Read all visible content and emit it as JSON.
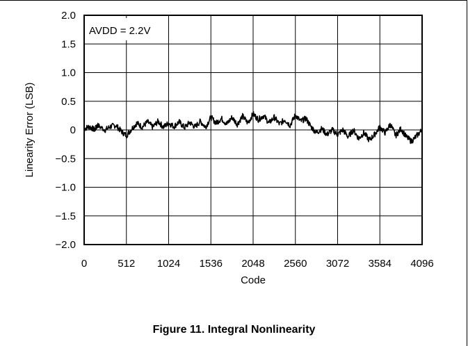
{
  "caption": "Figure 11. Integral Nonlinearity",
  "chart_data": {
    "type": "line",
    "title": "",
    "xlabel": "Code",
    "ylabel": "Linearity Error (LSB)",
    "xlim": [
      0,
      4096
    ],
    "ylim": [
      -2.0,
      2.0
    ],
    "x_ticks": [
      0,
      512,
      1024,
      1536,
      2048,
      2560,
      3072,
      3584,
      4096
    ],
    "y_ticks": [
      2.0,
      1.5,
      1.0,
      0.5,
      0,
      -0.5,
      -1.0,
      -1.5,
      -2.0
    ],
    "x_tick_labels": [
      "0",
      "512",
      "1024",
      "1536",
      "2048",
      "2560",
      "3072",
      "3584",
      "4096"
    ],
    "y_tick_labels": [
      "2.0",
      "1.5",
      "1.0",
      "0.5",
      "0",
      "−0.5",
      "−1.0",
      "−1.5",
      "−2.0"
    ],
    "grid": true,
    "annotation": "AVDD = 2.2V",
    "series": [
      {
        "color": "#000000",
        "x": [
          0,
          64,
          128,
          160,
          256,
          320,
          384,
          448,
          512,
          576,
          640,
          704,
          768,
          832,
          896,
          960,
          1024,
          1088,
          1152,
          1216,
          1280,
          1344,
          1408,
          1472,
          1536,
          1600,
          1664,
          1728,
          1792,
          1856,
          1920,
          1984,
          2048,
          2112,
          2176,
          2240,
          2304,
          2368,
          2432,
          2496,
          2560,
          2624,
          2688,
          2752,
          2816,
          2880,
          2944,
          3008,
          3072,
          3136,
          3200,
          3264,
          3328,
          3392,
          3456,
          3520,
          3584,
          3648,
          3712,
          3776,
          3840,
          3904,
          3968,
          4032,
          4096
        ],
        "values": [
          0.02,
          0.06,
          0.0,
          0.08,
          0.0,
          0.06,
          0.08,
          -0.02,
          -0.1,
          0.02,
          0.12,
          0.05,
          0.14,
          0.05,
          0.15,
          0.05,
          0.12,
          0.06,
          0.14,
          0.04,
          0.13,
          0.05,
          0.15,
          0.05,
          0.22,
          0.12,
          0.2,
          0.1,
          0.22,
          0.1,
          0.24,
          0.12,
          0.28,
          0.18,
          0.25,
          0.12,
          0.22,
          0.1,
          0.18,
          0.08,
          0.26,
          0.15,
          0.2,
          0.05,
          -0.05,
          0.02,
          -0.08,
          0.0,
          -0.08,
          0.0,
          -0.12,
          0.0,
          -0.15,
          -0.05,
          -0.18,
          -0.08,
          0.05,
          -0.05,
          0.1,
          -0.1,
          0.02,
          -0.12,
          -0.2,
          -0.1,
          0.0
        ]
      }
    ]
  }
}
